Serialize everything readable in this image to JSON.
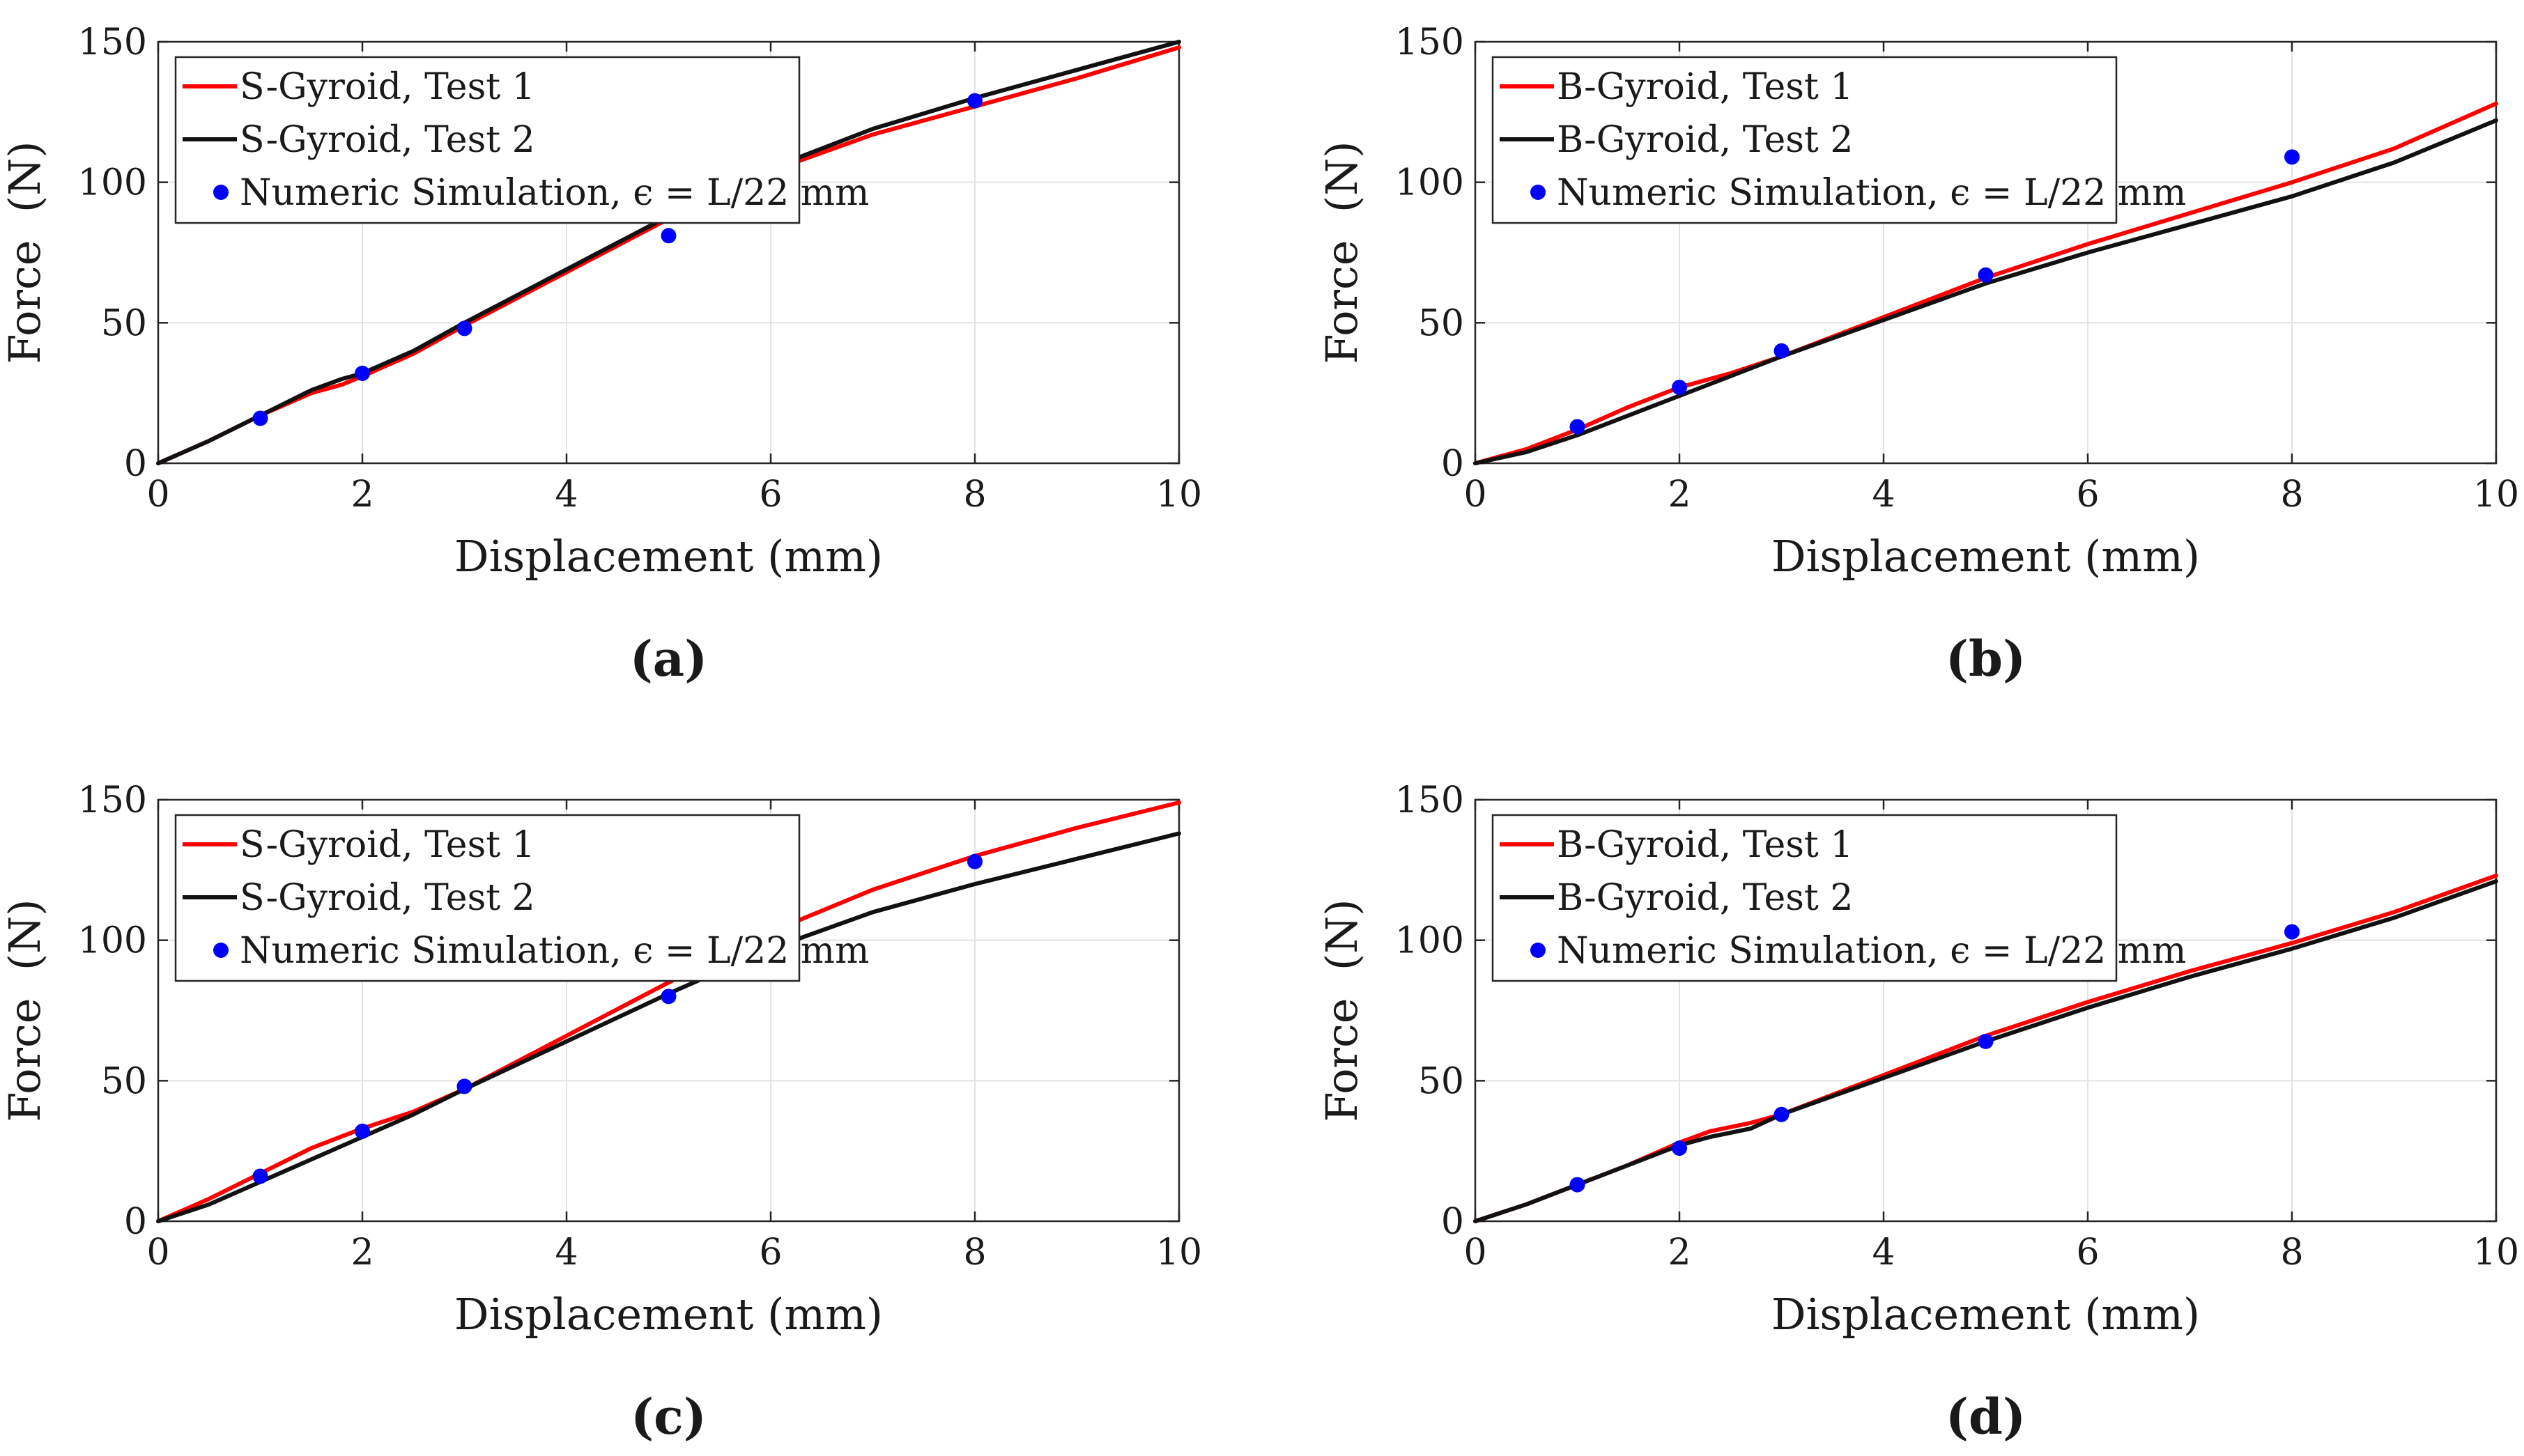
{
  "chart_data": [
    {
      "type": "line",
      "panel_label": "(a)",
      "xlabel": "Displacement (mm)",
      "ylabel": "Force  (N)",
      "xlim": [
        0,
        10
      ],
      "ylim": [
        0,
        150
      ],
      "xticks": [
        0,
        2,
        4,
        6,
        8,
        10
      ],
      "yticks": [
        0,
        50,
        100,
        150
      ],
      "grid": true,
      "legend_position": "top-left",
      "series": [
        {
          "name": "S-Gyroid, Test 1",
          "color": "#ff0000",
          "kind": "line",
          "points": [
            [
              0,
              0
            ],
            [
              0.5,
              8
            ],
            [
              1,
              17
            ],
            [
              1.5,
              25
            ],
            [
              1.8,
              28
            ],
            [
              2,
              31
            ],
            [
              2.5,
              39
            ],
            [
              3,
              49
            ],
            [
              4,
              68
            ],
            [
              5,
              87
            ],
            [
              6,
              104
            ],
            [
              7,
              117
            ],
            [
              8,
              127
            ],
            [
              9,
              137
            ],
            [
              10,
              148
            ]
          ]
        },
        {
          "name": "S-Gyroid, Test 2",
          "color": "#111111",
          "kind": "line",
          "points": [
            [
              0,
              0
            ],
            [
              0.5,
              8
            ],
            [
              1,
              17
            ],
            [
              1.5,
              26
            ],
            [
              1.8,
              30
            ],
            [
              2,
              32
            ],
            [
              2.5,
              40
            ],
            [
              3,
              50
            ],
            [
              4,
              69
            ],
            [
              5,
              88
            ],
            [
              6,
              105
            ],
            [
              7,
              119
            ],
            [
              8,
              130
            ],
            [
              9,
              140
            ],
            [
              10,
              150
            ]
          ]
        },
        {
          "name": "Numeric Simulation, ϵ = L/22 mm",
          "color": "#0000ff",
          "kind": "scatter",
          "points": [
            [
              1,
              16
            ],
            [
              2,
              32
            ],
            [
              3,
              48
            ],
            [
              5,
              81
            ],
            [
              8,
              129
            ]
          ]
        }
      ]
    },
    {
      "type": "line",
      "panel_label": "(b)",
      "xlabel": "Displacement (mm)",
      "ylabel": "Force  (N)",
      "xlim": [
        0,
        10
      ],
      "ylim": [
        0,
        150
      ],
      "xticks": [
        0,
        2,
        4,
        6,
        8,
        10
      ],
      "yticks": [
        0,
        50,
        100,
        150
      ],
      "grid": true,
      "legend_position": "top-left",
      "series": [
        {
          "name": "B-Gyroid, Test 1",
          "color": "#ff0000",
          "kind": "line",
          "points": [
            [
              0,
              0
            ],
            [
              0.5,
              5
            ],
            [
              1,
              12
            ],
            [
              1.5,
              20
            ],
            [
              2,
              27
            ],
            [
              2.5,
              32
            ],
            [
              3,
              38
            ],
            [
              4,
              52
            ],
            [
              5,
              66
            ],
            [
              6,
              78
            ],
            [
              7,
              89
            ],
            [
              8,
              100
            ],
            [
              9,
              112
            ],
            [
              10,
              128
            ]
          ]
        },
        {
          "name": "B-Gyroid, Test 2",
          "color": "#111111",
          "kind": "line",
          "points": [
            [
              0,
              0
            ],
            [
              0.5,
              4
            ],
            [
              1,
              10
            ],
            [
              1.5,
              17
            ],
            [
              2,
              24
            ],
            [
              2.5,
              31
            ],
            [
              3,
              38
            ],
            [
              4,
              51
            ],
            [
              5,
              64
            ],
            [
              6,
              75
            ],
            [
              7,
              85
            ],
            [
              8,
              95
            ],
            [
              9,
              107
            ],
            [
              10,
              122
            ]
          ]
        },
        {
          "name": "Numeric Simulation, ϵ = L/22 mm",
          "color": "#0000ff",
          "kind": "scatter",
          "points": [
            [
              1,
              13
            ],
            [
              2,
              27
            ],
            [
              3,
              40
            ],
            [
              5,
              67
            ],
            [
              8,
              109
            ]
          ]
        }
      ]
    },
    {
      "type": "line",
      "panel_label": "(c)",
      "xlabel": "Displacement (mm)",
      "ylabel": "Force  (N)",
      "xlim": [
        0,
        10
      ],
      "ylim": [
        0,
        150
      ],
      "xticks": [
        0,
        2,
        4,
        6,
        8,
        10
      ],
      "yticks": [
        0,
        50,
        100,
        150
      ],
      "grid": true,
      "legend_position": "top-left",
      "series": [
        {
          "name": "S-Gyroid, Test 1",
          "color": "#ff0000",
          "kind": "line",
          "points": [
            [
              0,
              0
            ],
            [
              0.5,
              8
            ],
            [
              1,
              17
            ],
            [
              1.5,
              26
            ],
            [
              2,
              33
            ],
            [
              2.5,
              39
            ],
            [
              3,
              47
            ],
            [
              4,
              66
            ],
            [
              5,
              85
            ],
            [
              6,
              103
            ],
            [
              7,
              118
            ],
            [
              8,
              130
            ],
            [
              9,
              140
            ],
            [
              10,
              149
            ]
          ]
        },
        {
          "name": "S-Gyroid, Test 2",
          "color": "#111111",
          "kind": "line",
          "points": [
            [
              0,
              0
            ],
            [
              0.5,
              6
            ],
            [
              1,
              14
            ],
            [
              1.5,
              22
            ],
            [
              2,
              30
            ],
            [
              2.5,
              38
            ],
            [
              3,
              47
            ],
            [
              4,
              64
            ],
            [
              5,
              81
            ],
            [
              6,
              97
            ],
            [
              7,
              110
            ],
            [
              8,
              120
            ],
            [
              9,
              129
            ],
            [
              10,
              138
            ]
          ]
        },
        {
          "name": "Numeric Simulation, ϵ = L/22 mm",
          "color": "#0000ff",
          "kind": "scatter",
          "points": [
            [
              1,
              16
            ],
            [
              2,
              32
            ],
            [
              3,
              48
            ],
            [
              5,
              80
            ],
            [
              8,
              128
            ]
          ]
        }
      ]
    },
    {
      "type": "line",
      "panel_label": "(d)",
      "xlabel": "Displacement (mm)",
      "ylabel": "Force  (N)",
      "xlim": [
        0,
        10
      ],
      "ylim": [
        0,
        150
      ],
      "xticks": [
        0,
        2,
        4,
        6,
        8,
        10
      ],
      "yticks": [
        0,
        50,
        100,
        150
      ],
      "grid": true,
      "legend_position": "top-left",
      "series": [
        {
          "name": "B-Gyroid, Test 1",
          "color": "#ff0000",
          "kind": "line",
          "points": [
            [
              0,
              0
            ],
            [
              0.5,
              6
            ],
            [
              1,
              13
            ],
            [
              1.5,
              20
            ],
            [
              2,
              28
            ],
            [
              2.3,
              32
            ],
            [
              2.7,
              35
            ],
            [
              3,
              38
            ],
            [
              4,
              52
            ],
            [
              5,
              66
            ],
            [
              6,
              78
            ],
            [
              7,
              89
            ],
            [
              8,
              99
            ],
            [
              9,
              110
            ],
            [
              10,
              123
            ]
          ]
        },
        {
          "name": "B-Gyroid, Test 2",
          "color": "#111111",
          "kind": "line",
          "points": [
            [
              0,
              0
            ],
            [
              0.5,
              6
            ],
            [
              1,
              13
            ],
            [
              1.5,
              20
            ],
            [
              2,
              27
            ],
            [
              2.3,
              30
            ],
            [
              2.7,
              33
            ],
            [
              3,
              38
            ],
            [
              4,
              51
            ],
            [
              5,
              64
            ],
            [
              6,
              76
            ],
            [
              7,
              87
            ],
            [
              8,
              97
            ],
            [
              9,
              108
            ],
            [
              10,
              121
            ]
          ]
        },
        {
          "name": "Numeric Simulation, ϵ = L/22 mm",
          "color": "#0000ff",
          "kind": "scatter",
          "points": [
            [
              1,
              13
            ],
            [
              2,
              26
            ],
            [
              3,
              38
            ],
            [
              5,
              64
            ],
            [
              8,
              103
            ]
          ]
        }
      ]
    }
  ]
}
